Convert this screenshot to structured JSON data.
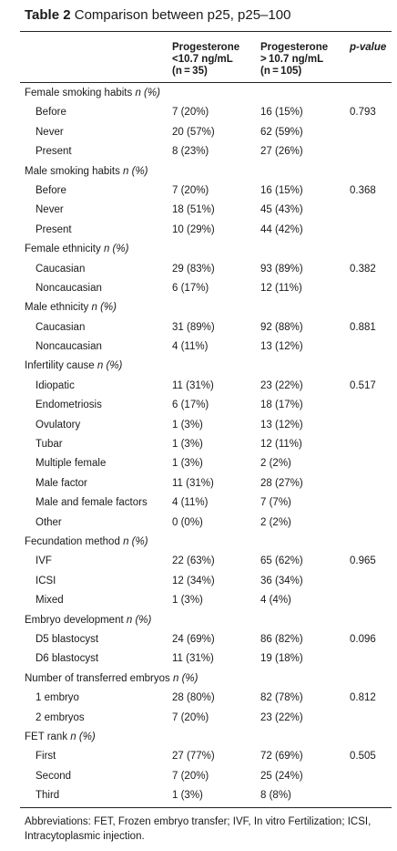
{
  "table": {
    "label": "Table 2",
    "caption": "Comparison between p25, p25–100",
    "headers": {
      "col1": [
        "Progesterone",
        "<10.7 ng/mL",
        "(n = 35)"
      ],
      "col2": [
        "Progesterone",
        "> 10.7 ng/mL",
        "(n = 105)"
      ],
      "col3": "p-value"
    },
    "rows": [
      {
        "type": "group",
        "label": "Female smoking habits",
        "unit": "n (%)"
      },
      {
        "type": "sub",
        "label": "Before",
        "c1": "7 (20%)",
        "c2": "16 (15%)",
        "c3": "0.793"
      },
      {
        "type": "sub",
        "label": "Never",
        "c1": "20 (57%)",
        "c2": "62 (59%)",
        "c3": ""
      },
      {
        "type": "sub",
        "label": "Present",
        "c1": "8 (23%)",
        "c2": "27 (26%)",
        "c3": ""
      },
      {
        "type": "group",
        "label": "Male smoking habits",
        "unit": "n (%)"
      },
      {
        "type": "sub",
        "label": "Before",
        "c1": "7 (20%)",
        "c2": "16 (15%)",
        "c3": "0.368"
      },
      {
        "type": "sub",
        "label": "Never",
        "c1": "18 (51%)",
        "c2": "45 (43%)",
        "c3": ""
      },
      {
        "type": "sub",
        "label": "Present",
        "c1": "10 (29%)",
        "c2": "44 (42%)",
        "c3": ""
      },
      {
        "type": "group",
        "label": "Female ethnicity",
        "unit": "n (%)"
      },
      {
        "type": "sub",
        "label": "Caucasian",
        "c1": "29 (83%)",
        "c2": "93 (89%)",
        "c3": "0.382"
      },
      {
        "type": "sub",
        "label": "Noncaucasian",
        "c1": "6 (17%)",
        "c2": "12 (11%)",
        "c3": ""
      },
      {
        "type": "group",
        "label": "Male ethnicity",
        "unit": "n (%)"
      },
      {
        "type": "sub",
        "label": "Caucasian",
        "c1": "31 (89%)",
        "c2": "92 (88%)",
        "c3": "0.881"
      },
      {
        "type": "sub",
        "label": "Noncaucasian",
        "c1": "4 (11%)",
        "c2": "13 (12%)",
        "c3": ""
      },
      {
        "type": "group",
        "label": "Infertility cause",
        "unit": "n (%)"
      },
      {
        "type": "sub",
        "label": "Idiopatic",
        "c1": "11 (31%)",
        "c2": "23 (22%)",
        "c3": "0.517"
      },
      {
        "type": "sub",
        "label": "Endometriosis",
        "c1": "6 (17%)",
        "c2": "18 (17%)",
        "c3": ""
      },
      {
        "type": "sub",
        "label": "Ovulatory",
        "c1": "1 (3%)",
        "c2": "13 (12%)",
        "c3": ""
      },
      {
        "type": "sub",
        "label": "Tubar",
        "c1": "1 (3%)",
        "c2": "12 (11%)",
        "c3": ""
      },
      {
        "type": "sub",
        "label": "Multiple female",
        "c1": "1 (3%)",
        "c2": "2 (2%)",
        "c3": ""
      },
      {
        "type": "sub",
        "label": "Male factor",
        "c1": "11 (31%)",
        "c2": "28 (27%)",
        "c3": ""
      },
      {
        "type": "sub",
        "label": "Male and female factors",
        "c1": "4 (11%)",
        "c2": "7 (7%)",
        "c3": ""
      },
      {
        "type": "sub",
        "label": "Other",
        "c1": "0 (0%)",
        "c2": "2 (2%)",
        "c3": ""
      },
      {
        "type": "group",
        "label": "Fecundation method",
        "unit": "n (%)"
      },
      {
        "type": "sub",
        "label": "IVF",
        "c1": "22 (63%)",
        "c2": "65 (62%)",
        "c3": "0.965"
      },
      {
        "type": "sub",
        "label": "ICSI",
        "c1": "12 (34%)",
        "c2": "36 (34%)",
        "c3": ""
      },
      {
        "type": "sub",
        "label": "Mixed",
        "c1": "1 (3%)",
        "c2": "4 (4%)",
        "c3": ""
      },
      {
        "type": "group",
        "label": "Embryo development",
        "unit": "n (%)"
      },
      {
        "type": "sub",
        "label": "D5 blastocyst",
        "c1": "24 (69%)",
        "c2": "86 (82%)",
        "c3": "0.096"
      },
      {
        "type": "sub",
        "label": "D6 blastocyst",
        "c1": "11 (31%)",
        "c2": "19 (18%)",
        "c3": ""
      },
      {
        "type": "group",
        "label": "Number of transferred embryos",
        "unit": "n (%)"
      },
      {
        "type": "sub",
        "label": "1 embryo",
        "c1": "28 (80%)",
        "c2": "82 (78%)",
        "c3": "0.812"
      },
      {
        "type": "sub",
        "label": "2 embryos",
        "c1": "7 (20%)",
        "c2": "23 (22%)",
        "c3": ""
      },
      {
        "type": "group",
        "label": "FET rank",
        "unit": "n (%)"
      },
      {
        "type": "sub",
        "label": "First",
        "c1": "27 (77%)",
        "c2": "72 (69%)",
        "c3": "0.505"
      },
      {
        "type": "sub",
        "label": "Second",
        "c1": "7 (20%)",
        "c2": "25 (24%)",
        "c3": ""
      },
      {
        "type": "sub",
        "label": "Third",
        "c1": "1 (3%)",
        "c2": "8 (8%)",
        "c3": ""
      }
    ],
    "footnote": "Abbreviations: FET, Frozen embryo transfer; IVF, In vitro Fertilization; ICSI, Intracytoplasmic injection."
  }
}
